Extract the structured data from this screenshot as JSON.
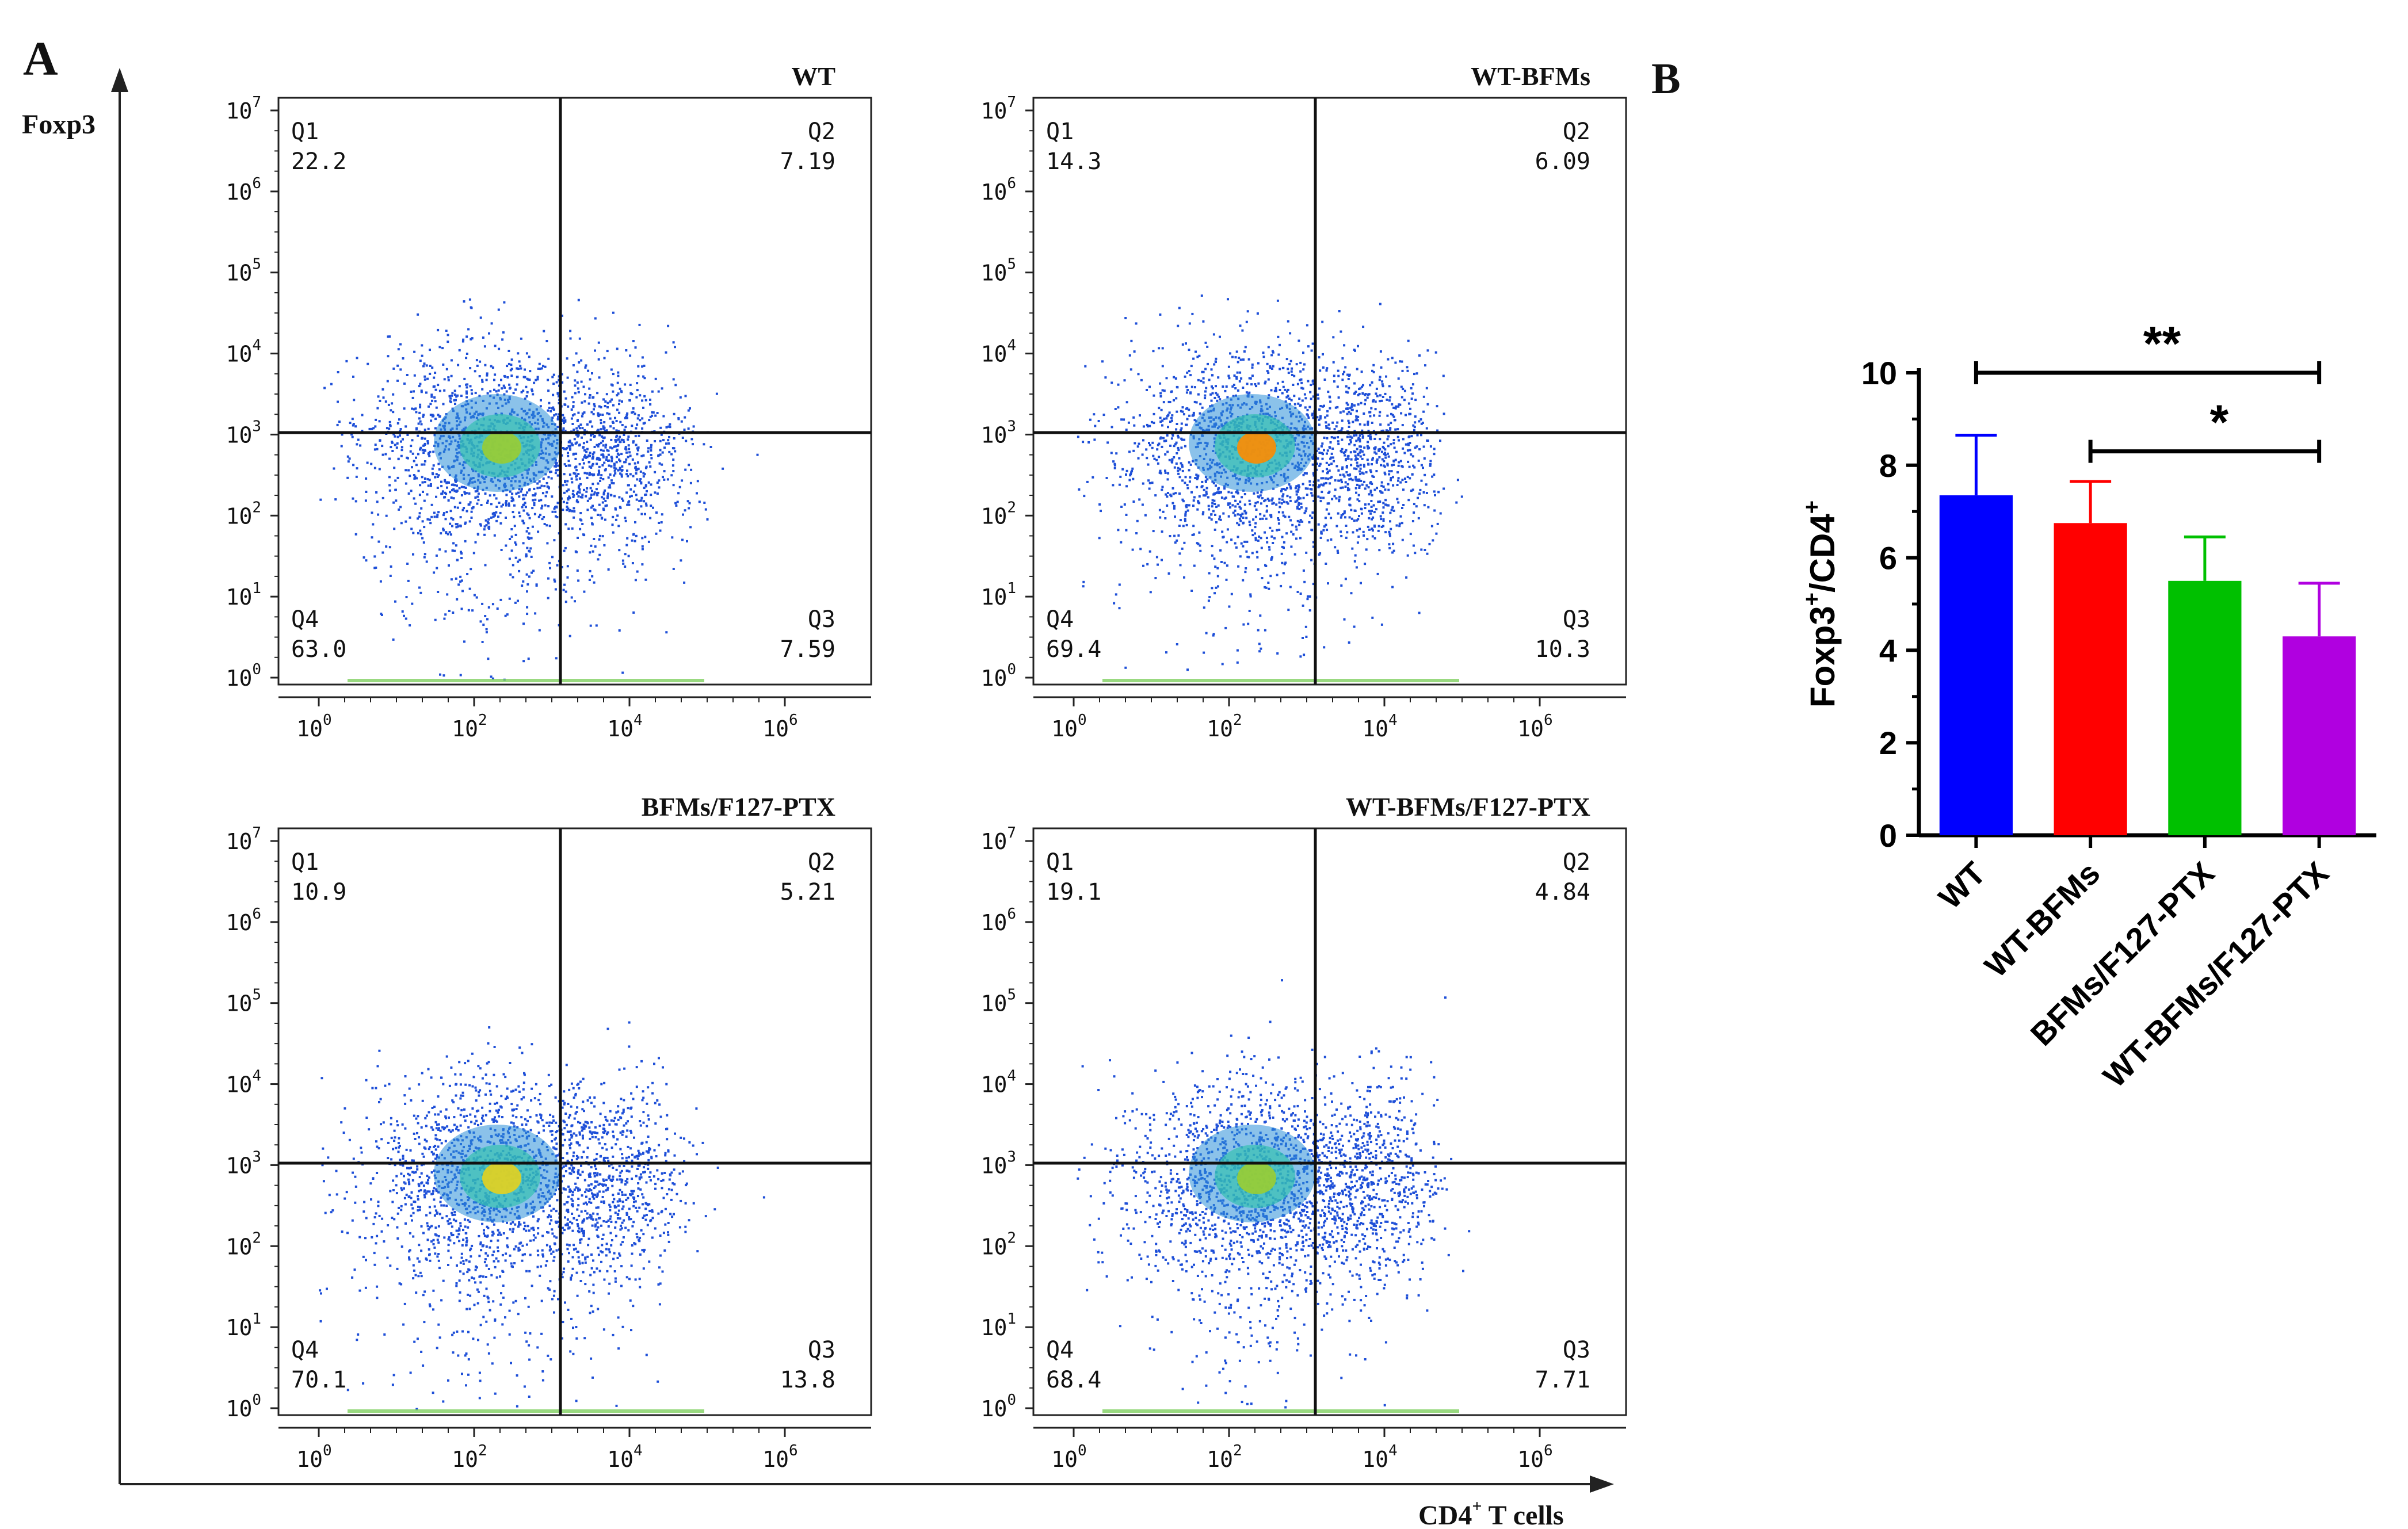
{
  "figure": {
    "panel_a_label": "A",
    "panel_b_label": "B",
    "y_axis_label": "Foxp3",
    "x_axis_label_main": "CD4",
    "x_axis_label_sup": "+",
    "x_axis_label_rest": " T cells"
  },
  "flow_plots": [
    {
      "title": "WT",
      "q1_label": "Q1",
      "q1": "22.2",
      "q2_label": "Q2",
      "q2": "7.19",
      "q3_label": "Q3",
      "q3": "7.59",
      "q4_label": "Q4",
      "q4": "63.0",
      "hotspot": "green"
    },
    {
      "title": "WT-BFMs",
      "q1_label": "Q1",
      "q1": "14.3",
      "q2_label": "Q2",
      "q2": "6.09",
      "q3_label": "Q3",
      "q3": "10.3",
      "q4_label": "Q4",
      "q4": "69.4",
      "hotspot": "orange"
    },
    {
      "title": "BFMs/F127-PTX",
      "q1_label": "Q1",
      "q1": "10.9",
      "q2_label": "Q2",
      "q2": "5.21",
      "q3_label": "Q3",
      "q3": "13.8",
      "q4_label": "Q4",
      "q4": "70.1",
      "hotspot": "yellow"
    },
    {
      "title": "WT-BFMs/F127-PTX",
      "q1_label": "Q1",
      "q1": "19.1",
      "q2_label": "Q2",
      "q2": "4.84",
      "q3_label": "Q3",
      "q3": "7.71",
      "q4_label": "Q4",
      "q4": "68.4",
      "hotspot": "green"
    }
  ],
  "flow_axis": {
    "y_ticks": [
      {
        "base": "10",
        "exp": "7"
      },
      {
        "base": "10",
        "exp": "6"
      },
      {
        "base": "10",
        "exp": "5"
      },
      {
        "base": "10",
        "exp": "4"
      },
      {
        "base": "10",
        "exp": "3"
      },
      {
        "base": "10",
        "exp": "2"
      },
      {
        "base": "10",
        "exp": "1"
      },
      {
        "base": "10",
        "exp": "0"
      }
    ],
    "x_ticks": [
      {
        "base": "10",
        "exp": "0"
      },
      {
        "base": "10",
        "exp": "2"
      },
      {
        "base": "10",
        "exp": "4"
      },
      {
        "base": "10",
        "exp": "6"
      }
    ]
  },
  "chart_data": {
    "type": "bar",
    "categories": [
      "WT",
      "WT-BFMs",
      "BFMs/F127-PTX",
      "WT-BFMs/F127-PTX"
    ],
    "values": [
      7.35,
      6.75,
      5.5,
      4.3
    ],
    "errors": [
      1.3,
      0.9,
      0.95,
      1.15
    ],
    "colors": [
      "#0000FF",
      "#FF0000",
      "#00C000",
      "#B000E0"
    ],
    "ylabel_main": "Foxp3",
    "ylabel_sup1": "+",
    "ylabel_mid": "/CD4",
    "ylabel_sup2": "+",
    "ylim": [
      0,
      10
    ],
    "yticks": [
      0,
      2,
      4,
      6,
      8,
      10
    ],
    "ytick_labels": [
      "0",
      "2",
      "4",
      "6",
      "8",
      "10"
    ],
    "significance": [
      {
        "from": 0,
        "to": 3,
        "label": "**"
      },
      {
        "from": 1,
        "to": 3,
        "label": "*"
      }
    ]
  }
}
